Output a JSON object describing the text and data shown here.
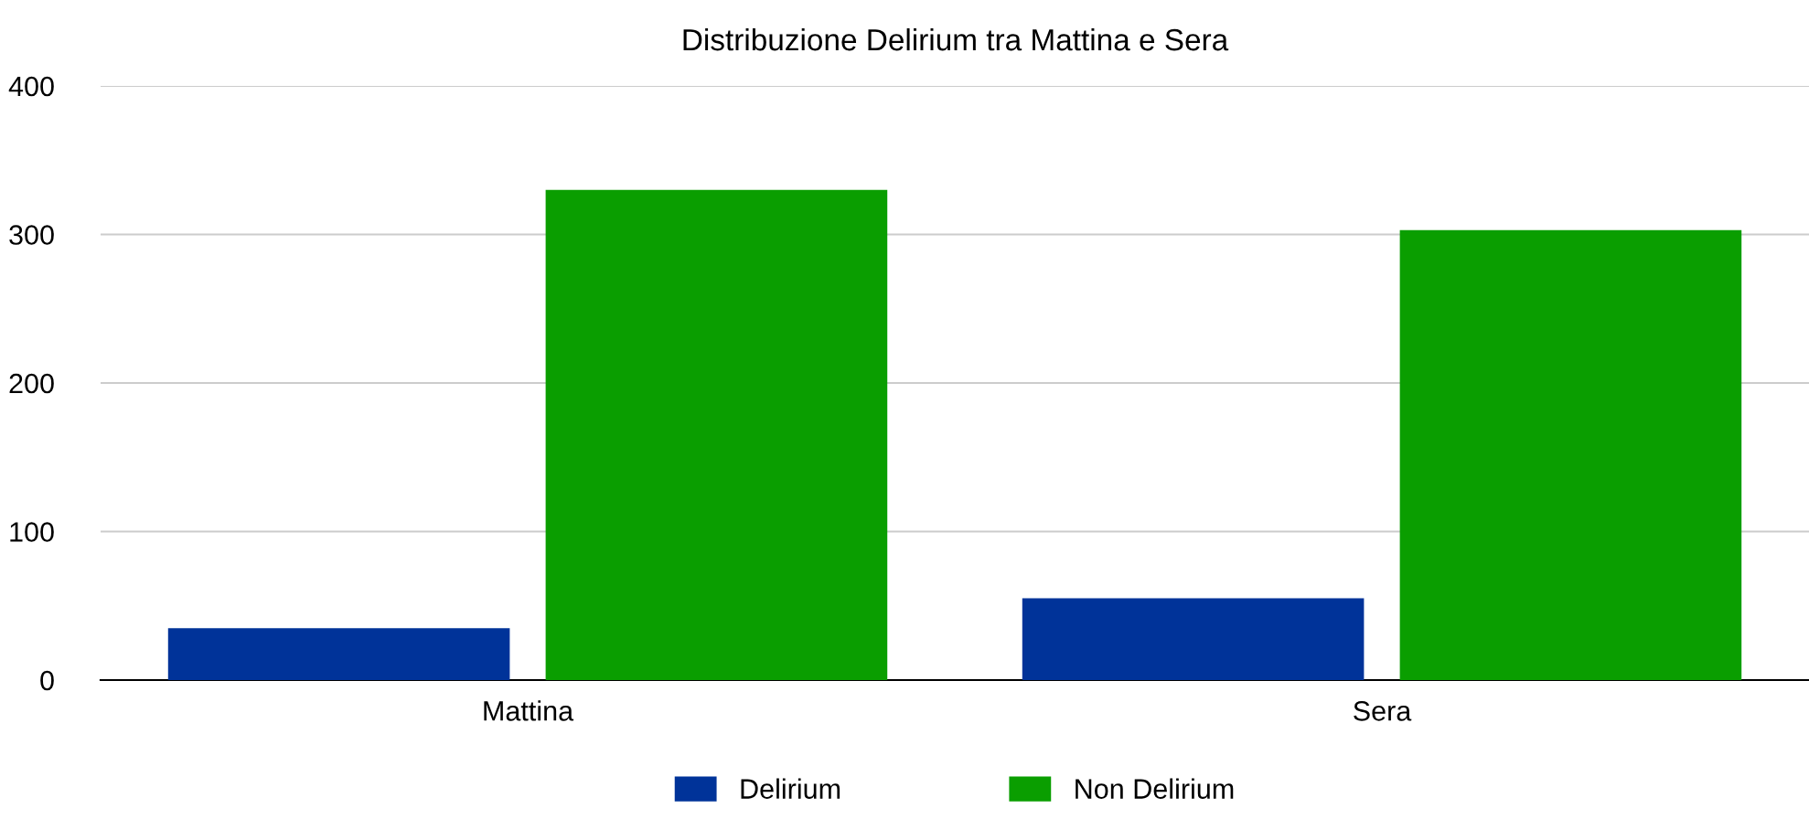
{
  "chart_data": {
    "type": "bar",
    "title": "Distribuzione Delirium tra Mattina e Sera",
    "categories": [
      "Mattina",
      "Sera"
    ],
    "series": [
      {
        "name": "Delirium",
        "color": "#003399",
        "values": [
          35,
          55
        ]
      },
      {
        "name": "Non Delirium",
        "color": "#0a9e00",
        "values": [
          330,
          303
        ]
      }
    ],
    "ylim": [
      0,
      400
    ],
    "yticks": [
      0,
      100,
      200,
      300,
      400
    ],
    "grid": "y",
    "legend": "bottom"
  }
}
